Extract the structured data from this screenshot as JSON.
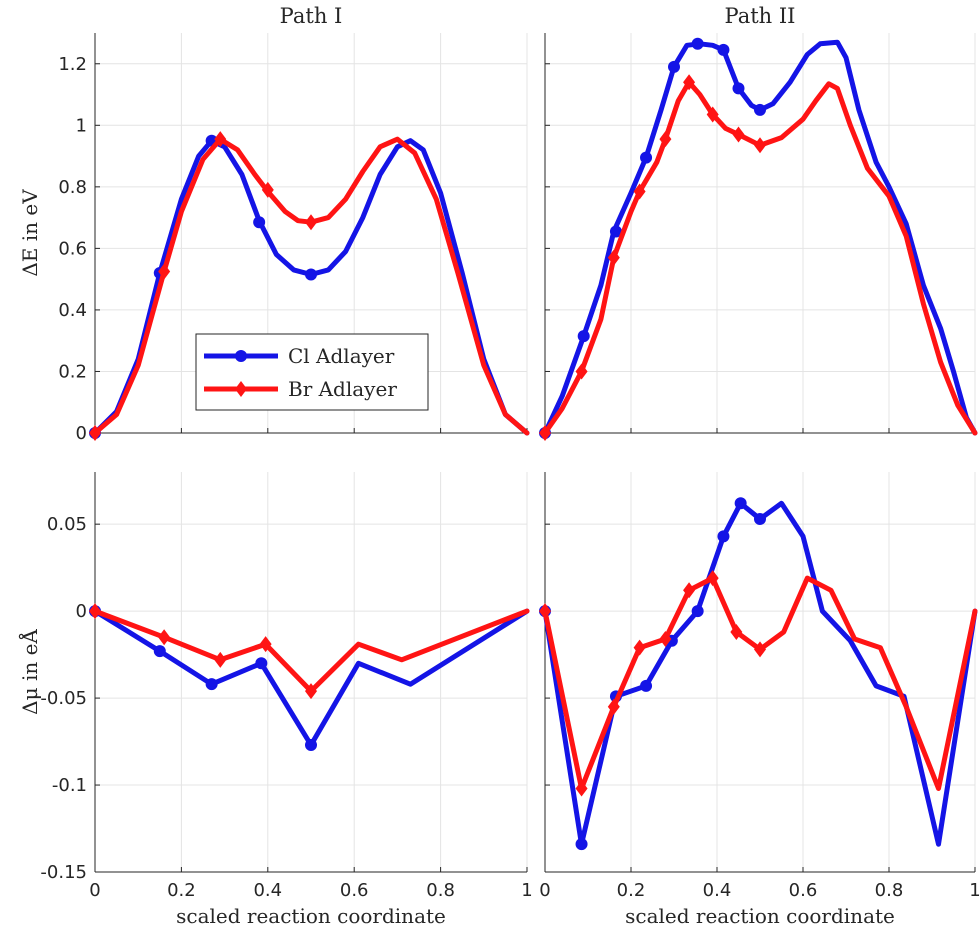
{
  "colors": {
    "cl": "#1414e6",
    "br": "#ff1414",
    "grid": "#e4e4e4",
    "axis": "#262626"
  },
  "legend": {
    "items": [
      {
        "label": "Cl Adlayer",
        "color": "#1414e6",
        "marker": "circle"
      },
      {
        "label": "Br Adlayer",
        "color": "#ff1414",
        "marker": "diamond"
      }
    ]
  },
  "chart_data": [
    {
      "id": "energy_path1",
      "type": "line",
      "title": "Path I",
      "xlabel": "",
      "ylabel": "ΔE in eV",
      "xlim": [
        0,
        1
      ],
      "ylim": [
        0,
        1.3
      ],
      "xticks": [
        0,
        0.2,
        0.4,
        0.6,
        0.8,
        1
      ],
      "xticklabels": [],
      "yticks": [
        0,
        0.2,
        0.4,
        0.6,
        0.8,
        1,
        1.2
      ],
      "yticklabels": [
        "0",
        "0.2",
        "0.4",
        "0.6",
        "0.8",
        "1",
        "1.2"
      ],
      "grid": true,
      "legend_position": "lower-center",
      "series": [
        {
          "name": "Cl Adlayer",
          "color": "#1414e6",
          "marker": "circle",
          "curve": [
            [
              0,
              0
            ],
            [
              0.05,
              0.07
            ],
            [
              0.1,
              0.24
            ],
            [
              0.15,
              0.52
            ],
            [
              0.2,
              0.76
            ],
            [
              0.24,
              0.9
            ],
            [
              0.27,
              0.95
            ],
            [
              0.3,
              0.93
            ],
            [
              0.34,
              0.84
            ],
            [
              0.38,
              0.69
            ],
            [
              0.42,
              0.58
            ],
            [
              0.46,
              0.53
            ],
            [
              0.5,
              0.515
            ],
            [
              0.54,
              0.53
            ],
            [
              0.58,
              0.59
            ],
            [
              0.62,
              0.7
            ],
            [
              0.66,
              0.84
            ],
            [
              0.7,
              0.93
            ],
            [
              0.73,
              0.95
            ],
            [
              0.76,
              0.92
            ],
            [
              0.8,
              0.78
            ],
            [
              0.85,
              0.52
            ],
            [
              0.9,
              0.24
            ],
            [
              0.95,
              0.06
            ],
            [
              1,
              0
            ]
          ],
          "points": [
            [
              0,
              0
            ],
            [
              0.15,
              0.52
            ],
            [
              0.27,
              0.95
            ],
            [
              0.38,
              0.685
            ],
            [
              0.5,
              0.515
            ]
          ]
        },
        {
          "name": "Br Adlayer",
          "color": "#ff1414",
          "marker": "diamond",
          "curve": [
            [
              0,
              0
            ],
            [
              0.05,
              0.06
            ],
            [
              0.1,
              0.22
            ],
            [
              0.16,
              0.525
            ],
            [
              0.2,
              0.72
            ],
            [
              0.25,
              0.89
            ],
            [
              0.29,
              0.955
            ],
            [
              0.33,
              0.92
            ],
            [
              0.37,
              0.84
            ],
            [
              0.4,
              0.785
            ],
            [
              0.44,
              0.72
            ],
            [
              0.47,
              0.69
            ],
            [
              0.5,
              0.685
            ],
            [
              0.54,
              0.7
            ],
            [
              0.58,
              0.76
            ],
            [
              0.62,
              0.85
            ],
            [
              0.66,
              0.93
            ],
            [
              0.7,
              0.955
            ],
            [
              0.74,
              0.91
            ],
            [
              0.79,
              0.76
            ],
            [
              0.84,
              0.52
            ],
            [
              0.9,
              0.22
            ],
            [
              0.95,
              0.06
            ],
            [
              1,
              0
            ]
          ],
          "points": [
            [
              0,
              0
            ],
            [
              0.16,
              0.525
            ],
            [
              0.29,
              0.955
            ],
            [
              0.4,
              0.79
            ],
            [
              0.5,
              0.685
            ]
          ]
        }
      ]
    },
    {
      "id": "energy_path2",
      "type": "line",
      "title": "Path II",
      "xlabel": "",
      "ylabel": "",
      "xlim": [
        0,
        1
      ],
      "ylim": [
        0,
        1.3
      ],
      "xticks": [
        0,
        0.2,
        0.4,
        0.6,
        0.8,
        1
      ],
      "xticklabels": [],
      "yticks": [
        0,
        0.2,
        0.4,
        0.6,
        0.8,
        1,
        1.2
      ],
      "yticklabels": [],
      "grid": true,
      "series": [
        {
          "name": "Cl Adlayer",
          "color": "#1414e6",
          "marker": "circle",
          "curve": [
            [
              0,
              0
            ],
            [
              0.04,
              0.12
            ],
            [
              0.09,
              0.315
            ],
            [
              0.13,
              0.48
            ],
            [
              0.16,
              0.655
            ],
            [
              0.2,
              0.78
            ],
            [
              0.235,
              0.895
            ],
            [
              0.27,
              1.05
            ],
            [
              0.3,
              1.19
            ],
            [
              0.33,
              1.26
            ],
            [
              0.36,
              1.265
            ],
            [
              0.39,
              1.26
            ],
            [
              0.415,
              1.245
            ],
            [
              0.45,
              1.12
            ],
            [
              0.48,
              1.065
            ],
            [
              0.5,
              1.05
            ],
            [
              0.53,
              1.07
            ],
            [
              0.57,
              1.14
            ],
            [
              0.61,
              1.23
            ],
            [
              0.64,
              1.265
            ],
            [
              0.68,
              1.27
            ],
            [
              0.7,
              1.22
            ],
            [
              0.73,
              1.05
            ],
            [
              0.77,
              0.88
            ],
            [
              0.8,
              0.8
            ],
            [
              0.84,
              0.68
            ],
            [
              0.88,
              0.48
            ],
            [
              0.92,
              0.34
            ],
            [
              0.95,
              0.2
            ],
            [
              0.98,
              0.05
            ],
            [
              1,
              0
            ]
          ],
          "points": [
            [
              0,
              0
            ],
            [
              0.09,
              0.315
            ],
            [
              0.165,
              0.655
            ],
            [
              0.235,
              0.895
            ],
            [
              0.3,
              1.19
            ],
            [
              0.355,
              1.265
            ],
            [
              0.415,
              1.245
            ],
            [
              0.45,
              1.12
            ],
            [
              0.5,
              1.05
            ]
          ]
        },
        {
          "name": "Br Adlayer",
          "color": "#ff1414",
          "marker": "diamond",
          "curve": [
            [
              0,
              0
            ],
            [
              0.04,
              0.08
            ],
            [
              0.085,
              0.2
            ],
            [
              0.13,
              0.37
            ],
            [
              0.16,
              0.57
            ],
            [
              0.2,
              0.72
            ],
            [
              0.22,
              0.785
            ],
            [
              0.26,
              0.88
            ],
            [
              0.28,
              0.955
            ],
            [
              0.31,
              1.08
            ],
            [
              0.335,
              1.14
            ],
            [
              0.36,
              1.1
            ],
            [
              0.39,
              1.035
            ],
            [
              0.42,
              0.99
            ],
            [
              0.45,
              0.97
            ],
            [
              0.5,
              0.935
            ],
            [
              0.55,
              0.96
            ],
            [
              0.6,
              1.02
            ],
            [
              0.63,
              1.08
            ],
            [
              0.66,
              1.135
            ],
            [
              0.68,
              1.12
            ],
            [
              0.71,
              1.0
            ],
            [
              0.75,
              0.86
            ],
            [
              0.8,
              0.77
            ],
            [
              0.84,
              0.64
            ],
            [
              0.88,
              0.42
            ],
            [
              0.92,
              0.23
            ],
            [
              0.96,
              0.09
            ],
            [
              1,
              0
            ]
          ],
          "points": [
            [
              0,
              0
            ],
            [
              0.085,
              0.2
            ],
            [
              0.16,
              0.57
            ],
            [
              0.22,
              0.785
            ],
            [
              0.28,
              0.955
            ],
            [
              0.335,
              1.14
            ],
            [
              0.39,
              1.035
            ],
            [
              0.45,
              0.97
            ],
            [
              0.5,
              0.935
            ]
          ]
        }
      ]
    },
    {
      "id": "dipole_path1",
      "type": "line",
      "title": "",
      "xlabel": "scaled reaction coordinate",
      "ylabel": "Δμ in eÅ",
      "xlim": [
        0,
        1
      ],
      "ylim": [
        -0.15,
        0.08
      ],
      "xticks": [
        0,
        0.2,
        0.4,
        0.6,
        0.8,
        1
      ],
      "xticklabels": [
        "0",
        "0.2",
        "0.4",
        "0.6",
        "0.8",
        "1"
      ],
      "yticks": [
        -0.15,
        -0.1,
        -0.05,
        0,
        0.05
      ],
      "yticklabels": [
        "-0.15",
        "-0.1",
        "-0.05",
        "0",
        "0.05"
      ],
      "grid": true,
      "series": [
        {
          "name": "Cl Adlayer",
          "color": "#1414e6",
          "marker": "circle",
          "curve": [
            [
              0,
              0
            ],
            [
              0.15,
              -0.023
            ],
            [
              0.27,
              -0.042
            ],
            [
              0.385,
              -0.03
            ],
            [
              0.5,
              -0.077
            ],
            [
              0.61,
              -0.03
            ],
            [
              0.73,
              -0.042
            ],
            [
              1,
              0
            ]
          ],
          "points": [
            [
              0,
              0
            ],
            [
              0.15,
              -0.023
            ],
            [
              0.27,
              -0.042
            ],
            [
              0.385,
              -0.03
            ],
            [
              0.5,
              -0.077
            ]
          ]
        },
        {
          "name": "Br Adlayer",
          "color": "#ff1414",
          "marker": "diamond",
          "curve": [
            [
              0,
              0
            ],
            [
              0.16,
              -0.015
            ],
            [
              0.29,
              -0.028
            ],
            [
              0.395,
              -0.019
            ],
            [
              0.5,
              -0.046
            ],
            [
              0.61,
              -0.019
            ],
            [
              0.71,
              -0.028
            ],
            [
              1,
              0
            ]
          ],
          "points": [
            [
              0,
              0
            ],
            [
              0.16,
              -0.015
            ],
            [
              0.29,
              -0.028
            ],
            [
              0.395,
              -0.019
            ],
            [
              0.5,
              -0.046
            ]
          ]
        }
      ]
    },
    {
      "id": "dipole_path2",
      "type": "line",
      "title": "",
      "xlabel": "scaled reaction coordinate",
      "ylabel": "",
      "xlim": [
        0,
        1
      ],
      "ylim": [
        -0.15,
        0.08
      ],
      "xticks": [
        0,
        0.2,
        0.4,
        0.6,
        0.8,
        1
      ],
      "xticklabels": [
        "0",
        "0.2",
        "0.4",
        "0.6",
        "0.8",
        "1"
      ],
      "yticks": [
        -0.15,
        -0.1,
        -0.05,
        0,
        0.05
      ],
      "yticklabels": [],
      "grid": true,
      "series": [
        {
          "name": "Cl Adlayer",
          "color": "#1414e6",
          "marker": "circle",
          "curve": [
            [
              0,
              0
            ],
            [
              0.085,
              -0.134
            ],
            [
              0.165,
              -0.049
            ],
            [
              0.235,
              -0.043
            ],
            [
              0.295,
              -0.017
            ],
            [
              0.355,
              0.0
            ],
            [
              0.415,
              0.043
            ],
            [
              0.455,
              0.062
            ],
            [
              0.5,
              0.053
            ],
            [
              0.55,
              0.062
            ],
            [
              0.6,
              0.043
            ],
            [
              0.645,
              0.0
            ],
            [
              0.71,
              -0.017
            ],
            [
              0.77,
              -0.043
            ],
            [
              0.835,
              -0.049
            ],
            [
              0.915,
              -0.134
            ],
            [
              1,
              0
            ]
          ],
          "points": [
            [
              0,
              0
            ],
            [
              0.085,
              -0.134
            ],
            [
              0.165,
              -0.049
            ],
            [
              0.235,
              -0.043
            ],
            [
              0.295,
              -0.017
            ],
            [
              0.355,
              0.0
            ],
            [
              0.415,
              0.043
            ],
            [
              0.455,
              0.062
            ],
            [
              0.5,
              0.053
            ]
          ]
        },
        {
          "name": "Br Adlayer",
          "color": "#ff1414",
          "marker": "diamond",
          "curve": [
            [
              0,
              0
            ],
            [
              0.085,
              -0.102
            ],
            [
              0.16,
              -0.055
            ],
            [
              0.22,
              -0.021
            ],
            [
              0.28,
              -0.016
            ],
            [
              0.335,
              0.012
            ],
            [
              0.39,
              0.019
            ],
            [
              0.445,
              -0.012
            ],
            [
              0.5,
              -0.022
            ],
            [
              0.555,
              -0.012
            ],
            [
              0.61,
              0.019
            ],
            [
              0.665,
              0.012
            ],
            [
              0.72,
              -0.016
            ],
            [
              0.78,
              -0.021
            ],
            [
              0.84,
              -0.055
            ],
            [
              0.915,
              -0.102
            ],
            [
              1,
              0
            ]
          ],
          "points": [
            [
              0,
              0
            ],
            [
              0.085,
              -0.102
            ],
            [
              0.16,
              -0.055
            ],
            [
              0.22,
              -0.021
            ],
            [
              0.28,
              -0.016
            ],
            [
              0.335,
              0.012
            ],
            [
              0.39,
              0.019
            ],
            [
              0.445,
              -0.012
            ],
            [
              0.5,
              -0.022
            ]
          ]
        }
      ]
    }
  ]
}
